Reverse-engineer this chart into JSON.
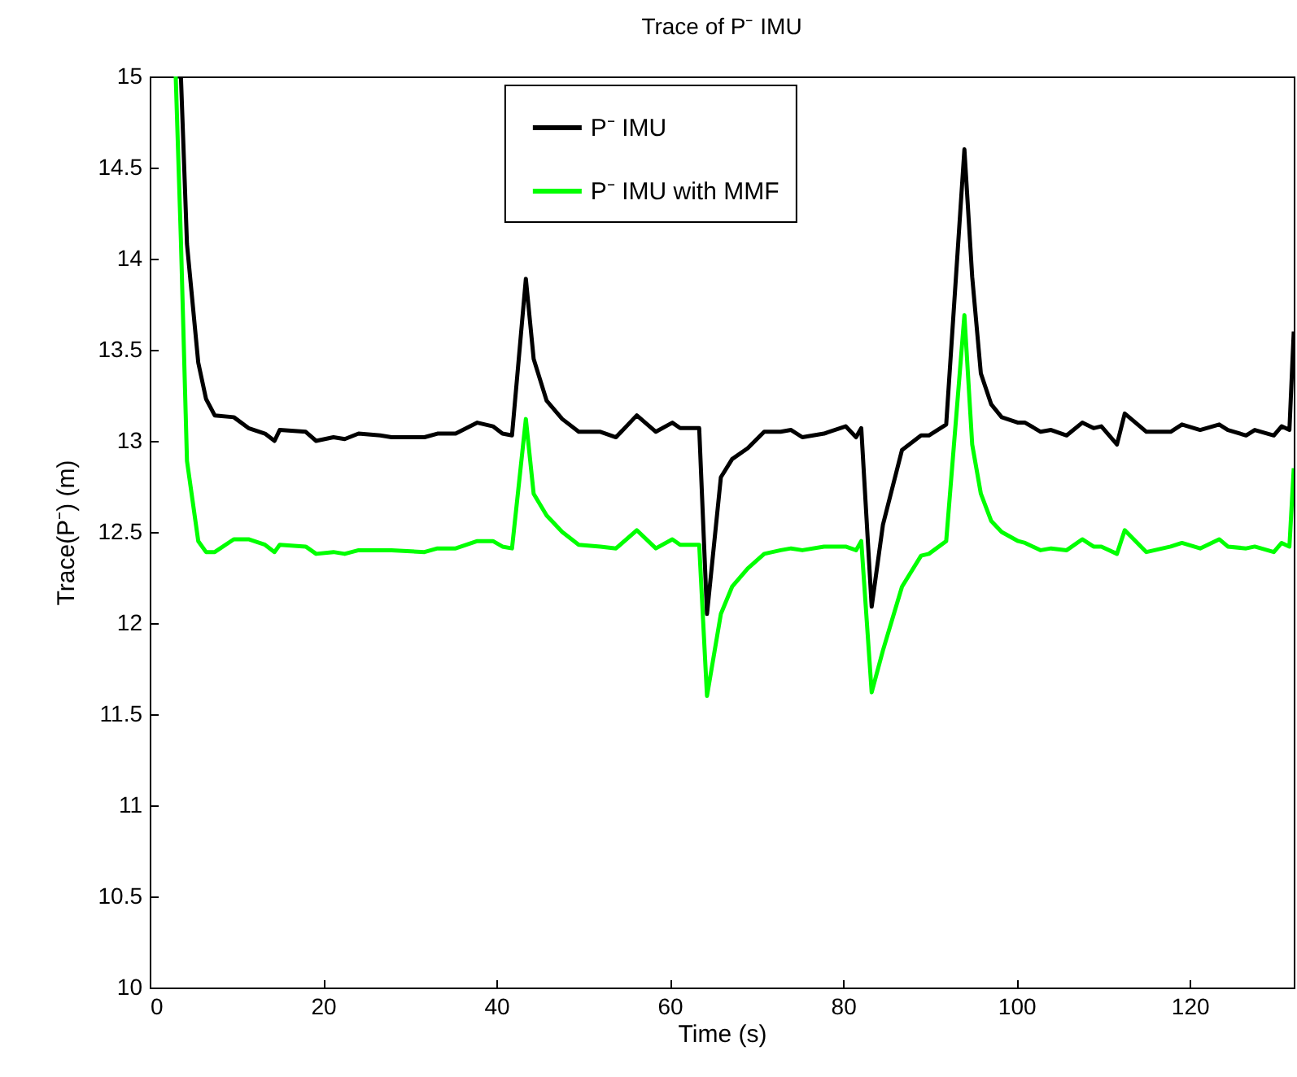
{
  "chart_data": {
    "type": "line",
    "title": "Trace of P⁻ IMU",
    "xlabel": "Time (s)",
    "ylabel": "Trace(P⁻) (m)",
    "x": [
      3,
      3.6,
      4.3,
      5.6,
      6.5,
      7.5,
      9.7,
      11.4,
      13.3,
      14.4,
      15,
      18,
      19.2,
      21.2,
      22.5,
      24.1,
      26.6,
      27.9,
      31.7,
      33.2,
      35.3,
      37.8,
      39.6,
      40.7,
      41.8,
      43.4,
      44.3,
      45.8,
      47.6,
      49.5,
      52,
      53.8,
      56.2,
      58.4,
      60.3,
      61.2,
      63.4,
      64.3,
      65.9,
      67.2,
      69,
      70.9,
      72.8,
      74,
      75.3,
      77.8,
      80.3,
      81.5,
      82.1,
      83.3,
      84.6,
      86.8,
      89,
      89.9,
      91.9,
      94,
      94.9,
      95.9,
      97.1,
      98.3,
      100.2,
      101,
      102.8,
      104,
      105.8,
      107.6,
      108.9,
      109.8,
      111.6,
      112.5,
      115,
      117.8,
      119.1,
      121.2,
      123.4,
      124.4,
      126.5,
      127.5,
      129.7,
      130.6,
      131.5,
      132
    ],
    "series": [
      {
        "name": "P⁻ IMU",
        "color": "#000000",
        "values": [
          15,
          15,
          14.08,
          13.43,
          13.23,
          13.14,
          13.13,
          13.07,
          13.04,
          13.0,
          13.06,
          13.05,
          13.0,
          13.02,
          13.01,
          13.04,
          13.03,
          13.02,
          13.02,
          13.04,
          13.04,
          13.1,
          13.08,
          13.04,
          13.03,
          13.89,
          13.45,
          13.22,
          13.12,
          13.05,
          13.05,
          13.02,
          13.14,
          13.05,
          13.1,
          13.07,
          13.07,
          12.05,
          12.8,
          12.9,
          12.96,
          13.05,
          13.05,
          13.06,
          13.02,
          13.04,
          13.08,
          13.02,
          13.07,
          12.09,
          12.54,
          12.95,
          13.03,
          13.03,
          13.09,
          14.6,
          13.9,
          13.37,
          13.2,
          13.13,
          13.1,
          13.1,
          13.05,
          13.06,
          13.03,
          13.1,
          13.07,
          13.08,
          12.98,
          13.15,
          13.05,
          13.05,
          13.09,
          13.06,
          13.09,
          13.06,
          13.03,
          13.06,
          13.03,
          13.08,
          13.06,
          13.6
        ]
      },
      {
        "name": "P⁻ IMU with MMF",
        "color": "#00ff00",
        "values": [
          15,
          14.1,
          12.89,
          12.45,
          12.39,
          12.39,
          12.46,
          12.46,
          12.43,
          12.39,
          12.43,
          12.42,
          12.38,
          12.39,
          12.38,
          12.4,
          12.4,
          12.4,
          12.39,
          12.41,
          12.41,
          12.45,
          12.45,
          12.42,
          12.41,
          13.12,
          12.71,
          12.59,
          12.5,
          12.43,
          12.42,
          12.41,
          12.51,
          12.41,
          12.46,
          12.43,
          12.43,
          11.6,
          12.05,
          12.2,
          12.3,
          12.38,
          12.4,
          12.41,
          12.4,
          12.42,
          12.42,
          12.4,
          12.45,
          11.62,
          11.85,
          12.2,
          12.37,
          12.38,
          12.45,
          13.69,
          12.98,
          12.71,
          12.56,
          12.5,
          12.45,
          12.44,
          12.4,
          12.41,
          12.4,
          12.46,
          12.42,
          12.42,
          12.38,
          12.51,
          12.39,
          12.42,
          12.44,
          12.41,
          12.46,
          12.42,
          12.41,
          12.42,
          12.39,
          12.44,
          12.42,
          12.85
        ]
      }
    ],
    "xlim": [
      0,
      132
    ],
    "xticks": [
      0,
      20,
      40,
      60,
      80,
      100,
      120
    ],
    "ylim": [
      10,
      15
    ],
    "yticks": [
      10,
      10.5,
      11,
      11.5,
      12,
      12.5,
      13,
      13.5,
      14,
      14.5,
      15
    ],
    "grid": false,
    "legend": "top",
    "line_style": "solid",
    "marker": "none"
  }
}
